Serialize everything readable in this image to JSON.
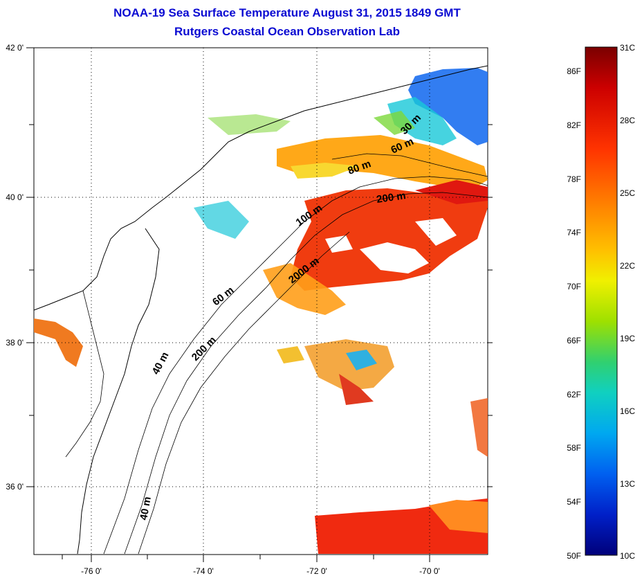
{
  "header": {
    "title": "NOAA-19 Sea Surface Temperature August 31, 2015 1849 GMT",
    "subtitle": "Rutgers Coastal Ocean Observation Lab"
  },
  "map": {
    "lon_ticks": [
      "-76 0'",
      "-74 0'",
      "-72 0'",
      "-70 0'"
    ],
    "lat_ticks": [
      "42 0'",
      "40 0'",
      "38 0'",
      "36 0'"
    ],
    "depth_labels": {
      "d30": "30 m",
      "d60a": "60 m",
      "d80": "80 m",
      "d200a": "200 m",
      "d100": "100 m",
      "d2000": "2000 m",
      "d60b": "60 m",
      "d200b": "200 m",
      "d40a": "40 m",
      "d40b": "40 m"
    }
  },
  "colorbar": {
    "f_labels": [
      "86F",
      "82F",
      "78F",
      "74F",
      "70F",
      "66F",
      "62F",
      "58F",
      "54F",
      "50F"
    ],
    "c_labels": [
      "31C",
      "28C",
      "25C",
      "22C",
      "19C",
      "16C",
      "13C",
      "10C"
    ],
    "colors": [
      "#7a0000",
      "#cc0000",
      "#ff3300",
      "#ff7a00",
      "#ffc000",
      "#f0f000",
      "#9ee000",
      "#30d070",
      "#10d0c0",
      "#00a8f0",
      "#0060f0",
      "#0020c8",
      "#00007a"
    ]
  }
}
